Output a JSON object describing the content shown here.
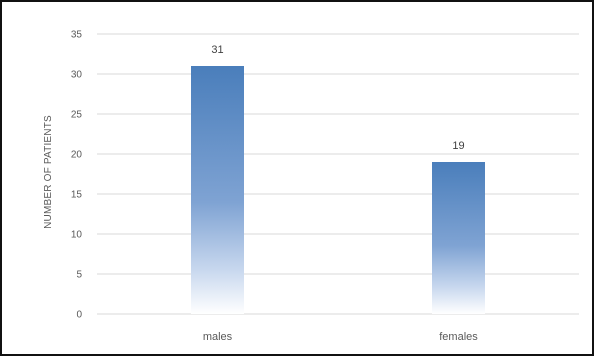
{
  "chart_data": {
    "type": "bar",
    "categories": [
      "males",
      "females"
    ],
    "values": [
      31,
      19
    ],
    "data_labels": [
      "31",
      "19"
    ],
    "ylabel": "NUMBER OF PATIENTS",
    "xlabel": "",
    "ylim": [
      0,
      35
    ],
    "yticks": [
      "0",
      "5",
      "10",
      "15",
      "20",
      "25",
      "30",
      "35"
    ],
    "grid": true,
    "legend": "none",
    "bar_color": "#4f81bd",
    "bar_fill": "gradient-top-to-white"
  }
}
